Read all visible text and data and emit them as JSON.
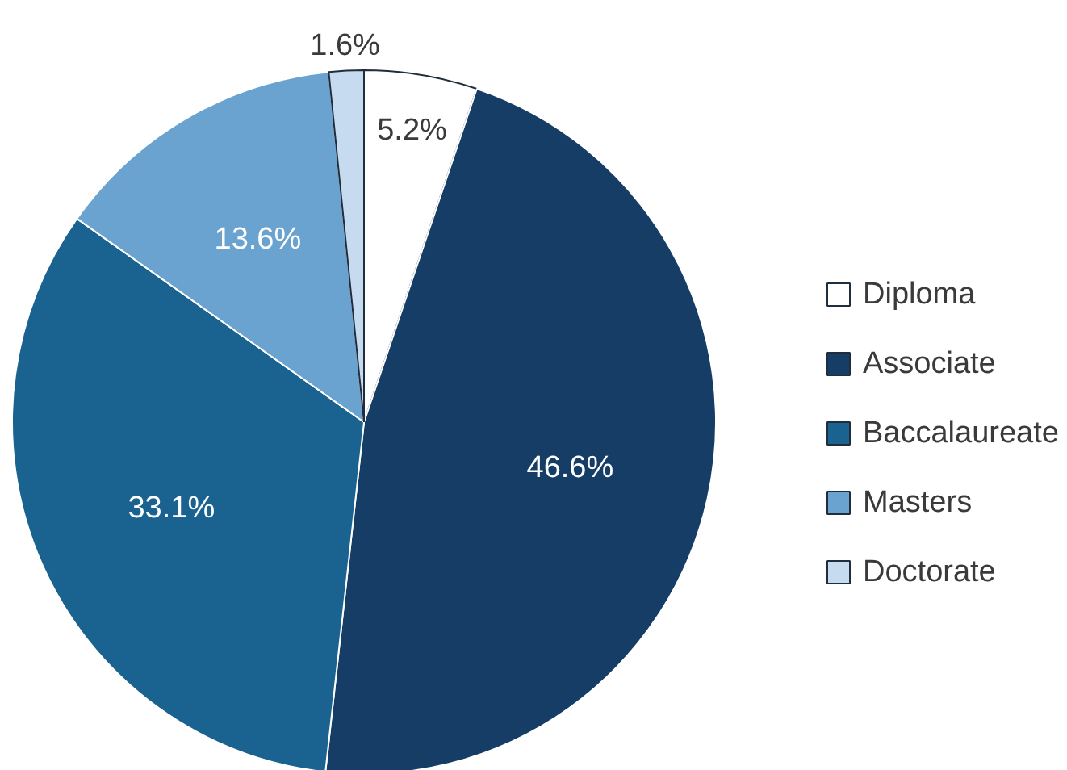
{
  "chart_data": {
    "type": "pie",
    "categories": [
      "Diploma",
      "Associate",
      "Baccalaureate",
      "Masters",
      "Doctorate"
    ],
    "values": [
      5.2,
      46.6,
      33.1,
      13.6,
      1.6
    ],
    "colors": [
      "#ffffff",
      "#153d66",
      "#1a6290",
      "#6aa3d0",
      "#c6dbef"
    ],
    "value_labels": [
      "5.2%",
      "46.6%",
      "33.1%",
      "13.6%",
      "1.6%"
    ],
    "legend": "right"
  }
}
